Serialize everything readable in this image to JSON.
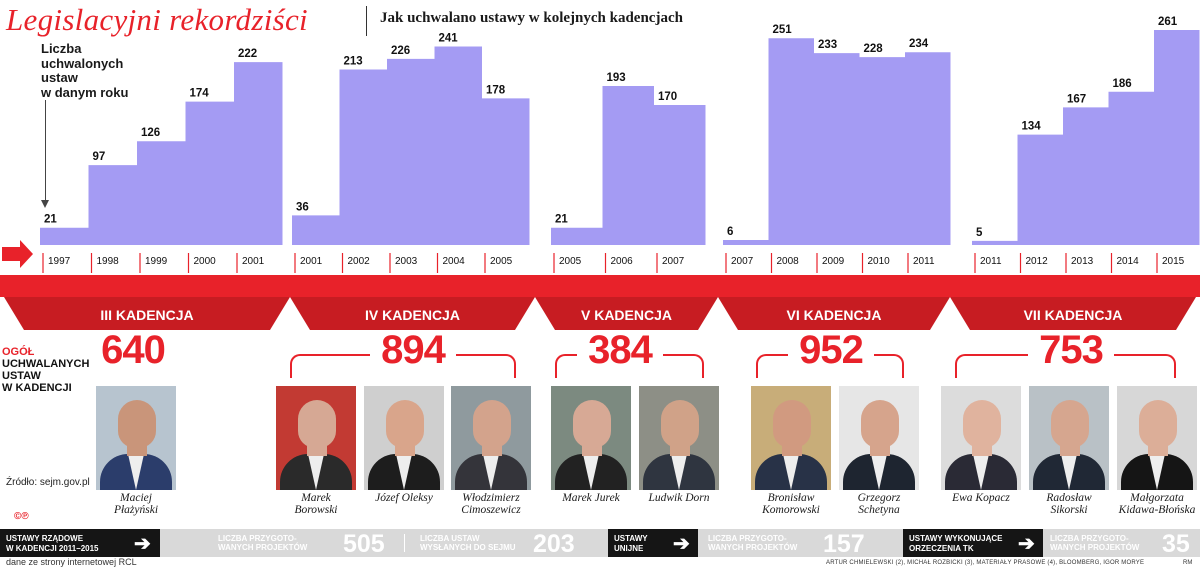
{
  "header": {
    "title": "Legislacyjni rekordziści",
    "subtitle": "Jak uchwalano ustawy w kolejnych kadencjach"
  },
  "legend": {
    "lines": [
      "Liczba",
      "uchwalonych",
      "ustaw",
      "w danym roku"
    ]
  },
  "colors": {
    "bar": "#a49bf3",
    "accent_red": "#e8222a",
    "band_dark_red": "#c71c22"
  },
  "chart_data": {
    "type": "bar",
    "ylim": [
      0,
      261
    ],
    "grid": false,
    "periods": [
      {
        "name": "III KADENCJA",
        "total": "640",
        "years": [
          "1997",
          "1998",
          "1999",
          "2000",
          "2001"
        ],
        "values": [
          21,
          97,
          126,
          174,
          222
        ]
      },
      {
        "name": "IV KADENCJA",
        "total": "894",
        "years": [
          "2001",
          "2002",
          "2003",
          "2004",
          "2005"
        ],
        "values": [
          36,
          213,
          226,
          241,
          178
        ]
      },
      {
        "name": "V KADENCJA",
        "total": "384",
        "years": [
          "2005",
          "2006",
          "2007"
        ],
        "values": [
          21,
          193,
          170
        ]
      },
      {
        "name": "VI KADENCJA",
        "total": "952",
        "years": [
          "2007",
          "2008",
          "2009",
          "2010",
          "2011"
        ],
        "values": [
          6,
          251,
          233,
          228,
          234
        ]
      },
      {
        "name": "VII KADENCJA",
        "total": "753",
        "years": [
          "2011",
          "2012",
          "2013",
          "2014",
          "2015"
        ],
        "values": [
          5,
          134,
          167,
          186,
          261
        ]
      }
    ]
  },
  "totals_caption": [
    "OGÓŁ",
    "UCHWALANYCH",
    "USTAW",
    "W KADENCJI"
  ],
  "people": [
    {
      "name": [
        "Maciej",
        "Płażyński"
      ],
      "skin": "#c9957a",
      "suit": "#2b3d6b",
      "bg": "#b7c4cf"
    },
    {
      "name": [
        "Marek",
        "Borowski"
      ],
      "skin": "#d6a894",
      "suit": "#2a2a2a",
      "bg": "#c23a33"
    },
    {
      "name": [
        "Józef Oleksy",
        ""
      ],
      "skin": "#d9a58b",
      "suit": "#1d1d1d",
      "bg": "#cfcfcf"
    },
    {
      "name": [
        "Włodzimierz",
        "Cimoszewicz"
      ],
      "skin": "#d3a38c",
      "suit": "#34343a",
      "bg": "#8f9a9e"
    },
    {
      "name": [
        "Marek Jurek",
        ""
      ],
      "skin": "#d7a995",
      "suit": "#222222",
      "bg": "#7c8a80"
    },
    {
      "name": [
        "Ludwik Dorn",
        ""
      ],
      "skin": "#d0a288",
      "suit": "#2f3540",
      "bg": "#8d8f86"
    },
    {
      "name": [
        "Bronisław",
        "Komorowski"
      ],
      "skin": "#d19a80",
      "suit": "#283247",
      "bg": "#c8ad79"
    },
    {
      "name": [
        "Grzegorz",
        "Schetyna"
      ],
      "skin": "#d6a48c",
      "suit": "#1e2530",
      "bg": "#e6e6e6"
    },
    {
      "name": [
        "Ewa Kopacz",
        ""
      ],
      "skin": "#e0b39e",
      "suit": "#2a2a35",
      "bg": "#dcdcdc"
    },
    {
      "name": [
        "Radosław",
        "Sikorski"
      ],
      "skin": "#d6a68f",
      "suit": "#202835",
      "bg": "#b9c1c6"
    },
    {
      "name": [
        "Małgorzata",
        "Kidawa-Błońska"
      ],
      "skin": "#dcae98",
      "suit": "#151515",
      "bg": "#d7d7d7"
    }
  ],
  "source": "Źródło: sejm.gov.pl",
  "copyright": "©℗",
  "bottom_stats": [
    {
      "title": [
        "USTAWY RZĄDOWE",
        "W KADENCJI 2011–2015"
      ],
      "items": [
        {
          "label": [
            "LICZBA PRZYGOTO-",
            "WANYCH PROJEKTÓW"
          ],
          "value": "505"
        },
        {
          "label": [
            "LICZBA USTAW",
            "WYSŁANYCH DO SEJMU"
          ],
          "value": "203"
        }
      ]
    },
    {
      "title": [
        "USTAWY",
        "UNIJNE"
      ],
      "items": [
        {
          "label": [
            "LICZBA PRZYGOTO-",
            "WANYCH PROJEKTÓW"
          ],
          "value": "157"
        }
      ]
    },
    {
      "title": [
        "USTAWY WYKONUJĄCE",
        "ORZECZENIA TK"
      ],
      "items": [
        {
          "label": [
            "LICZBA PRZYGOTO-",
            "WANYCH PROJEKTÓW"
          ],
          "value": "35"
        }
      ]
    }
  ],
  "footer": {
    "left": "dane ze strony internetowej RCL",
    "credits": "ARTUR CHMIELEWSKI (2), MICHAŁ ROZBICKI (3), MATERIAŁY PRASOWE (4), BLOOMBERG, IGOR MORYE",
    "initials": "RM"
  }
}
